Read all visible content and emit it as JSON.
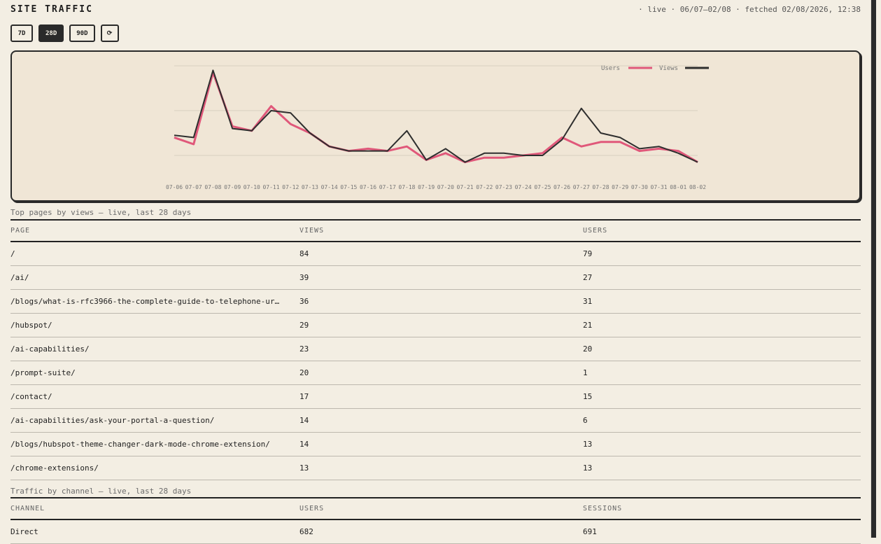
{
  "header": {
    "title": "SITE TRAFFIC",
    "meta": "· live · 06/07–02/08 · fetched 02/08/2026, 12:38"
  },
  "ranges": [
    {
      "label": "7D",
      "active": false
    },
    {
      "label": "28D",
      "active": true
    },
    {
      "label": "90D",
      "active": false
    }
  ],
  "refresh_label": "⟳",
  "colors": {
    "users": "#e0587a",
    "views": "#2e2e2e",
    "grid": "#d8d0c0"
  },
  "chart_data": {
    "type": "line",
    "x": [
      "07-06",
      "07-07",
      "07-08",
      "07-09",
      "07-10",
      "07-11",
      "07-12",
      "07-13",
      "07-14",
      "07-15",
      "07-16",
      "07-17",
      "07-18",
      "07-19",
      "07-20",
      "07-21",
      "07-22",
      "07-23",
      "07-24",
      "07-25",
      "07-26",
      "07-27",
      "07-28",
      "07-29",
      "07-30",
      "07-31",
      "08-01",
      "08-02"
    ],
    "series": [
      {
        "name": "Users",
        "values": [
          18,
          15,
          47,
          23,
          21,
          32,
          24,
          20,
          14,
          12,
          13,
          12,
          14,
          8,
          11,
          7,
          9,
          9,
          10,
          11,
          18,
          14,
          16,
          16,
          12,
          13,
          12,
          7
        ]
      },
      {
        "name": "Views",
        "values": [
          19,
          18,
          48,
          22,
          21,
          30,
          29,
          20,
          14,
          12,
          12,
          12,
          21,
          8,
          13,
          7,
          11,
          11,
          10,
          10,
          17,
          31,
          20,
          18,
          13,
          14,
          11,
          7
        ]
      }
    ],
    "ylim": [
      0,
      50
    ],
    "grid": true,
    "legend": "top-right"
  },
  "top_pages": {
    "caption": "Top pages by views — live, last 28 days",
    "columns": [
      "PAGE",
      "VIEWS",
      "USERS"
    ],
    "rows": [
      [
        "/",
        "84",
        "79"
      ],
      [
        "/ai/",
        "39",
        "27"
      ],
      [
        "/blogs/what-is-rfc3966-the-complete-guide-to-telephone-ur…",
        "36",
        "31"
      ],
      [
        "/hubspot/",
        "29",
        "21"
      ],
      [
        "/ai-capabilities/",
        "23",
        "20"
      ],
      [
        "/prompt-suite/",
        "20",
        "1"
      ],
      [
        "/contact/",
        "17",
        "15"
      ],
      [
        "/ai-capabilities/ask-your-portal-a-question/",
        "14",
        "6"
      ],
      [
        "/blogs/hubspot-theme-changer-dark-mode-chrome-extension/",
        "14",
        "13"
      ],
      [
        "/chrome-extensions/",
        "13",
        "13"
      ]
    ]
  },
  "channels": {
    "caption": "Traffic by channel — live, last 28 days",
    "columns": [
      "CHANNEL",
      "USERS",
      "SESSIONS"
    ],
    "rows": [
      [
        "Direct",
        "682",
        "691"
      ]
    ]
  }
}
